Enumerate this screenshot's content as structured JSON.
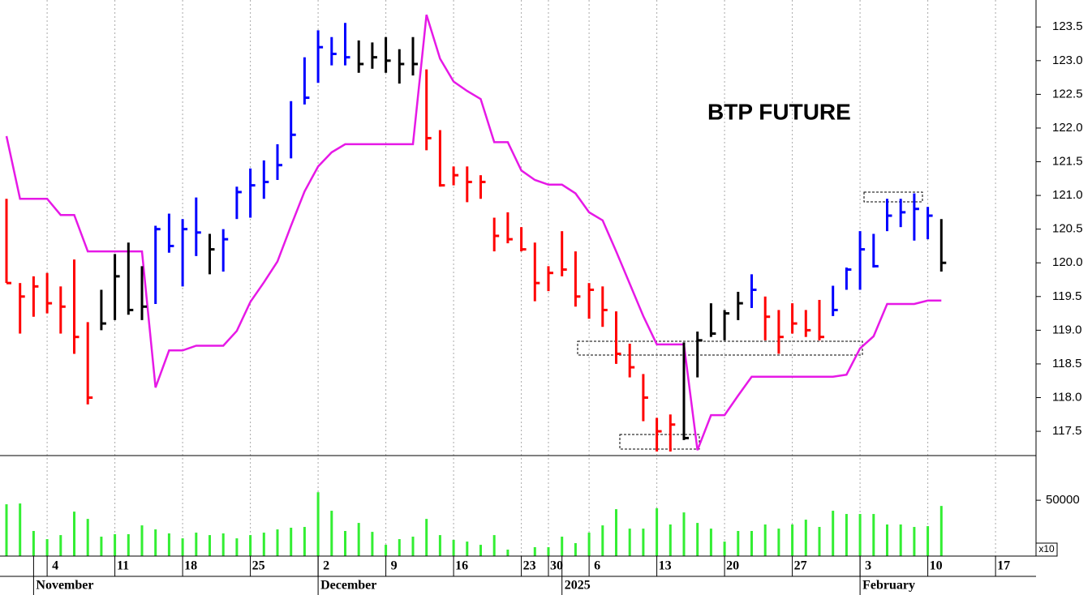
{
  "chart_data": {
    "type": "ohlc",
    "title": "BTP FUTURE",
    "categories": [
      null,
      null,
      null,
      "4",
      null,
      null,
      null,
      null,
      "11",
      null,
      null,
      null,
      null,
      "18",
      null,
      null,
      null,
      null,
      "25",
      null,
      null,
      null,
      null,
      "2",
      null,
      null,
      null,
      null,
      "9",
      null,
      null,
      null,
      null,
      "16",
      null,
      null,
      null,
      null,
      "23",
      null,
      "30",
      null,
      null,
      "6",
      null,
      null,
      null,
      null,
      "13",
      null,
      null,
      null,
      null,
      "20",
      null,
      null,
      null,
      null,
      "27",
      null,
      null,
      null,
      null,
      "3",
      null,
      null,
      null,
      null,
      "10",
      null,
      null,
      null,
      null,
      "17",
      null,
      null
    ],
    "months": [
      null,
      null,
      "November",
      null,
      null,
      null,
      null,
      null,
      null,
      null,
      null,
      null,
      null,
      null,
      null,
      null,
      null,
      null,
      null,
      null,
      null,
      null,
      null,
      "December",
      null,
      null,
      null,
      null,
      null,
      null,
      null,
      null,
      null,
      null,
      null,
      null,
      null,
      null,
      null,
      null,
      null,
      "2025",
      null,
      null,
      null,
      null,
      null,
      null,
      null,
      null,
      null,
      null,
      null,
      null,
      null,
      null,
      null,
      null,
      null,
      null,
      null,
      null,
      null,
      "February",
      null,
      null,
      null,
      null,
      null,
      null,
      null,
      null,
      null,
      null,
      null,
      null
    ],
    "high": [
      120.95,
      119.7,
      119.8,
      119.85,
      119.65,
      120.05,
      119.12,
      119.6,
      120.13,
      120.3,
      119.95,
      120.55,
      120.73,
      120.65,
      120.97,
      120.43,
      120.5,
      121.13,
      121.4,
      121.52,
      121.76,
      122.4,
      123.05,
      123.45,
      123.35,
      123.56,
      123.3,
      123.27,
      123.35,
      123.17,
      123.35,
      122.87,
      121.97,
      121.43,
      121.43,
      121.3,
      120.67,
      120.75,
      120.53,
      120.3,
      119.95,
      120.47,
      120.17,
      119.7,
      119.65,
      119.28,
      118.8,
      118.35,
      117.7,
      117.75,
      118.82,
      118.98,
      119.4,
      119.3,
      119.57,
      119.83,
      119.5,
      119.3,
      119.4,
      119.3,
      119.45,
      119.66,
      119.93,
      120.47,
      120.43,
      120.95,
      120.95,
      121.03,
      120.83,
      120.65,
      null,
      null,
      null,
      null,
      null,
      null
    ],
    "low": [
      119.7,
      118.95,
      119.2,
      119.25,
      118.95,
      118.65,
      117.9,
      119.0,
      119.15,
      119.23,
      119.15,
      119.39,
      120.15,
      119.65,
      120.1,
      119.83,
      119.87,
      120.65,
      120.67,
      120.95,
      121.23,
      121.55,
      122.35,
      122.67,
      122.93,
      122.93,
      122.82,
      122.88,
      122.82,
      122.66,
      122.78,
      121.67,
      121.13,
      121.15,
      120.9,
      120.95,
      120.17,
      120.29,
      120.17,
      119.43,
      119.58,
      119.8,
      119.35,
      119.17,
      119.05,
      118.5,
      118.3,
      117.65,
      117.2,
      117.2,
      117.37,
      118.3,
      118.9,
      118.85,
      119.15,
      119.33,
      118.85,
      118.65,
      118.95,
      118.9,
      118.85,
      119.21,
      119.6,
      119.6,
      119.93,
      120.47,
      120.53,
      120.33,
      120.35,
      119.87,
      null,
      null,
      null,
      null,
      null,
      null
    ],
    "close": [
      119.7,
      119.5,
      119.65,
      119.4,
      119.35,
      118.9,
      118.0,
      119.1,
      119.8,
      119.3,
      119.35,
      120.5,
      120.25,
      120.5,
      120.45,
      120.2,
      120.35,
      121.05,
      121.15,
      121.2,
      121.45,
      121.9,
      122.45,
      123.2,
      123.1,
      123.05,
      122.95,
      123.05,
      123.0,
      122.95,
      122.95,
      121.85,
      121.15,
      121.3,
      121.2,
      121.2,
      120.4,
      120.35,
      120.2,
      119.7,
      119.85,
      119.9,
      119.5,
      119.6,
      119.3,
      118.65,
      118.45,
      118.0,
      117.5,
      117.6,
      117.4,
      118.85,
      118.95,
      119.25,
      119.4,
      119.6,
      119.2,
      118.9,
      119.1,
      119.0,
      118.9,
      119.3,
      119.9,
      120.2,
      119.95,
      120.7,
      120.75,
      120.8,
      120.7,
      120.0,
      null,
      null,
      null,
      null,
      null,
      null
    ],
    "bar_colors": [
      "#ff0000",
      "#ff0000",
      "#ff0000",
      "#ff0000",
      "#ff0000",
      "#ff0000",
      "#ff0000",
      "#000000",
      "#000000",
      "#000000",
      "#000000",
      "#0000ff",
      "#0000ff",
      "#0000ff",
      "#0000ff",
      "#000000",
      "#0000ff",
      "#0000ff",
      "#0000ff",
      "#0000ff",
      "#0000ff",
      "#0000ff",
      "#0000ff",
      "#0000ff",
      "#0000ff",
      "#0000ff",
      "#000000",
      "#000000",
      "#000000",
      "#000000",
      "#000000",
      "#ff0000",
      "#ff0000",
      "#ff0000",
      "#ff0000",
      "#ff0000",
      "#ff0000",
      "#ff0000",
      "#ff0000",
      "#ff0000",
      "#ff0000",
      "#ff0000",
      "#ff0000",
      "#ff0000",
      "#ff0000",
      "#ff0000",
      "#ff0000",
      "#ff0000",
      "#ff0000",
      "#ff0000",
      "#000000",
      "#000000",
      "#000000",
      "#000000",
      "#000000",
      "#0000ff",
      "#ff0000",
      "#ff0000",
      "#ff0000",
      "#ff0000",
      "#ff0000",
      "#0000ff",
      "#0000ff",
      "#0000ff",
      "#0000ff",
      "#0000ff",
      "#0000ff",
      "#0000ff",
      "#0000ff",
      "#000000",
      null,
      null,
      null,
      null,
      null,
      null
    ],
    "line": {
      "color": "#e619e6",
      "values": [
        121.88,
        120.95,
        120.95,
        120.95,
        120.71,
        120.71,
        120.17,
        120.17,
        120.17,
        120.17,
        120.17,
        118.15,
        118.7,
        118.7,
        118.77,
        118.77,
        118.77,
        118.99,
        119.42,
        119.71,
        120.02,
        120.55,
        121.06,
        121.43,
        121.64,
        121.76,
        121.76,
        121.76,
        121.76,
        121.76,
        121.76,
        123.68,
        123.03,
        122.69,
        122.55,
        122.43,
        121.79,
        121.79,
        121.37,
        121.23,
        121.16,
        121.16,
        121.03,
        120.75,
        120.63,
        120.17,
        119.69,
        119.21,
        118.79,
        118.79,
        118.79,
        117.22,
        117.74,
        117.74,
        118.03,
        118.31,
        118.31,
        118.31,
        118.31,
        118.31,
        118.31,
        118.31,
        118.34,
        118.73,
        118.91,
        119.39,
        119.39,
        119.39,
        119.44,
        119.44,
        null,
        null,
        null,
        null,
        null,
        null
      ]
    },
    "ylim": [
      117.14,
      123.9
    ],
    "yticks": [
      117.5,
      {
        "value": 118,
        "label": "118.0"
      },
      118.5,
      {
        "value": 119,
        "label": "119.0"
      },
      119.5,
      {
        "value": 120,
        "label": "120.0"
      },
      120.5,
      {
        "value": 121,
        "label": "121.0"
      },
      121.5,
      {
        "value": 122,
        "label": "122.0"
      },
      122.5,
      {
        "value": 123,
        "label": "123.0"
      },
      123.5
    ],
    "volume": {
      "type": "bar",
      "color": "#33ee33",
      "values": [
        46400,
        47100,
        22500,
        15200,
        18800,
        39800,
        33300,
        17400,
        19600,
        19600,
        27500,
        23900,
        20300,
        15900,
        21000,
        18800,
        20300,
        15900,
        18800,
        21000,
        23900,
        25400,
        26100,
        57200,
        40600,
        22500,
        29700,
        21700,
        10100,
        15200,
        17400,
        33300,
        18800,
        14500,
        13000,
        10100,
        18800,
        5800,
        null,
        8000,
        8000,
        17400,
        11600,
        21000,
        27500,
        42000,
        24600,
        24600,
        42800,
        28300,
        39100,
        29700,
        24600,
        13000,
        22500,
        22500,
        28300,
        24600,
        28300,
        32600,
        26100,
        40600,
        37700,
        37700,
        37700,
        28300,
        28300,
        26100,
        26800,
        44900,
        null,
        null,
        null,
        null,
        null,
        null
      ],
      "ylim": [
        0,
        90000
      ],
      "yticks": [
        50000
      ],
      "multiplier_label": "x10"
    }
  }
}
